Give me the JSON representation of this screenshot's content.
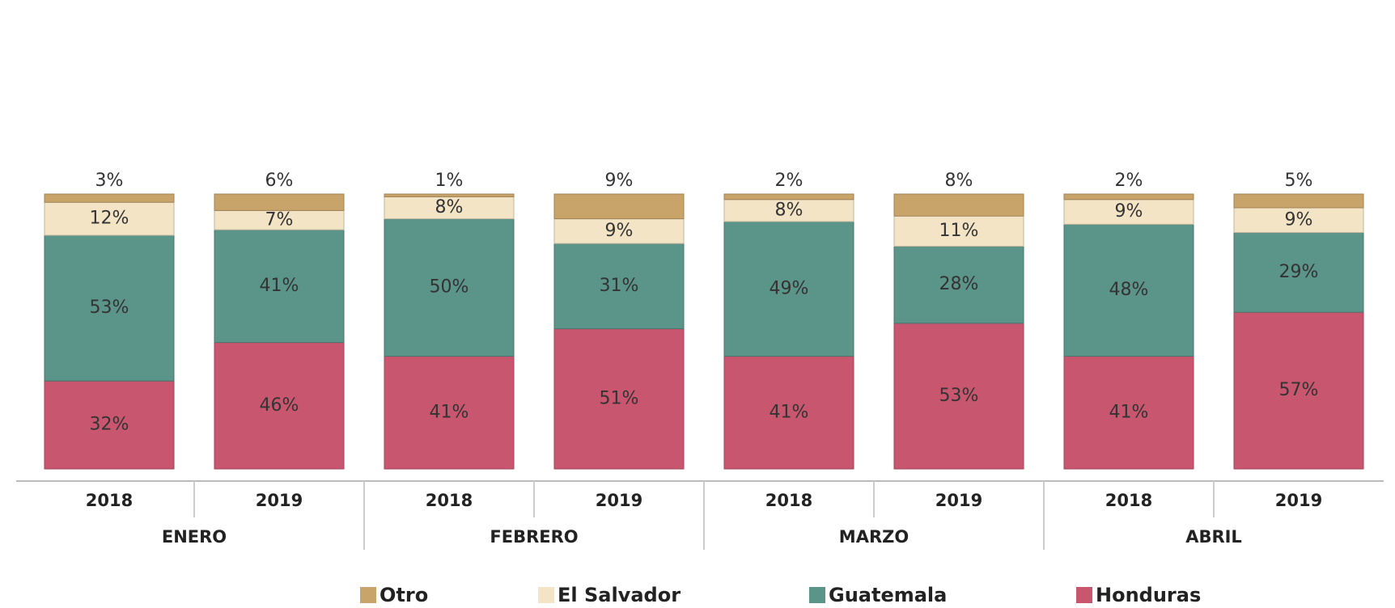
{
  "chart_data": {
    "type": "stacked_bar",
    "categories": [
      "2018",
      "2019",
      "2018",
      "2019",
      "2018",
      "2019",
      "2018",
      "2019"
    ],
    "groups": [
      "ENERO",
      "FEBRERO",
      "MARZO",
      "ABRIL"
    ],
    "series": [
      {
        "name": "Otro",
        "color": "#c9a46a",
        "values": [
          3,
          6,
          1,
          9,
          2,
          8,
          2,
          5
        ],
        "value_labels": [
          "3%",
          "6%",
          "1%",
          "9%",
          "2%",
          "8%",
          "2%",
          "5%"
        ]
      },
      {
        "name": "El Salvador",
        "color": "#f3e4c6",
        "values": [
          12,
          7,
          8,
          9,
          8,
          11,
          9,
          9
        ],
        "value_labels": [
          "12%",
          "7%",
          "8%",
          "9%",
          "8%",
          "11%",
          "9%",
          "9%"
        ]
      },
      {
        "name": "Guatemala",
        "color": "#5b9488",
        "values": [
          53,
          41,
          50,
          31,
          49,
          28,
          48,
          29
        ],
        "value_labels": [
          "53%",
          "41%",
          "50%",
          "31%",
          "49%",
          "28%",
          "48%",
          "29%"
        ]
      },
      {
        "name": "Honduras",
        "color": "#c9566f",
        "values": [
          32,
          46,
          41,
          51,
          41,
          53,
          41,
          57
        ],
        "value_labels": [
          "32%",
          "46%",
          "41%",
          "51%",
          "41%",
          "53%",
          "41%",
          "57%"
        ]
      }
    ]
  }
}
